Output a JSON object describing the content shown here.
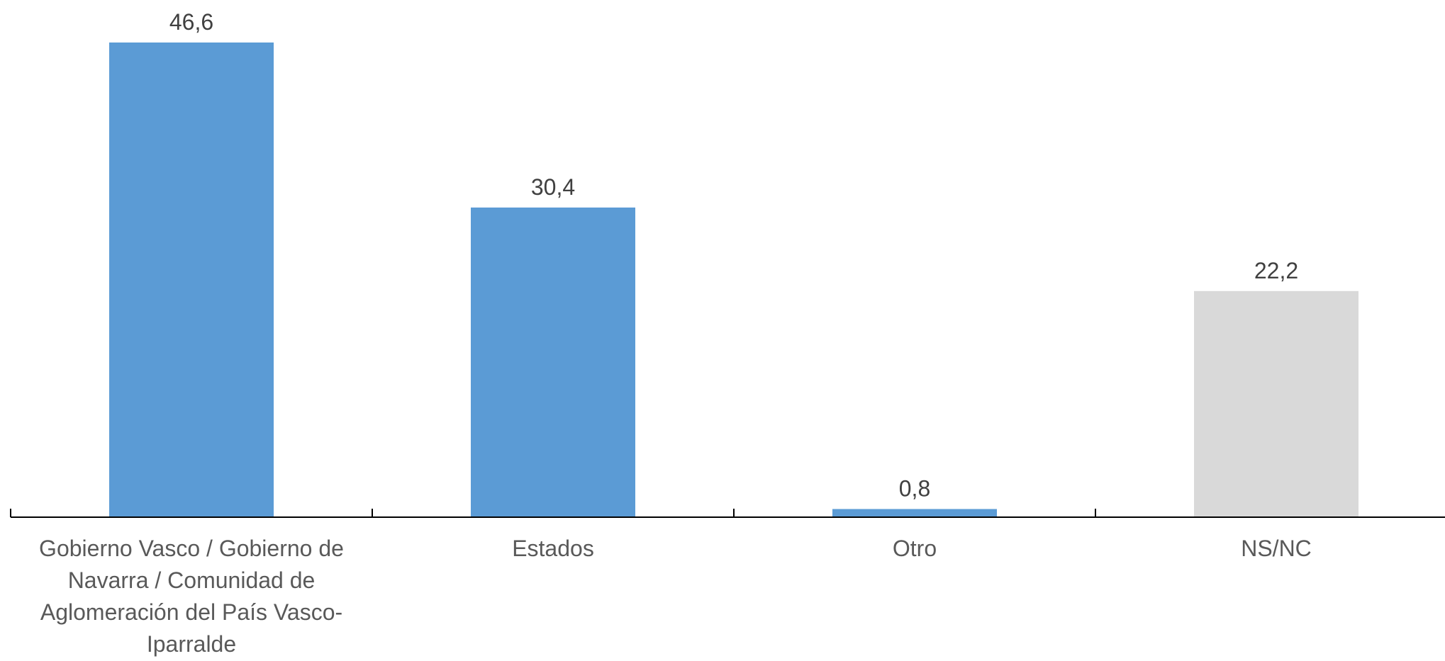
{
  "chart_data": {
    "type": "bar",
    "categories": [
      "Gobierno Vasco / Gobierno de Navarra / Comunidad de Aglomeración del País Vasco-Iparralde",
      "Estados",
      "Otro",
      "NS/NC"
    ],
    "category_lines": [
      [
        "Gobierno Vasco / Gobierno de",
        "Navarra / Comunidad de",
        "Aglomeración del País Vasco-",
        "Iparralde"
      ],
      [
        "Estados"
      ],
      [
        "Otro"
      ],
      [
        "NS/NC"
      ]
    ],
    "values": [
      46.6,
      30.4,
      0.8,
      22.2
    ],
    "value_labels": [
      "46,6",
      "30,4",
      "0,8",
      "22,2"
    ],
    "bar_colors": [
      "#5b9bd5",
      "#5b9bd5",
      "#5b9bd5",
      "#d9d9d9"
    ],
    "title": "",
    "xlabel": "",
    "ylabel": "",
    "ylim": [
      0,
      46.6
    ],
    "grid": false,
    "legend": "none"
  }
}
